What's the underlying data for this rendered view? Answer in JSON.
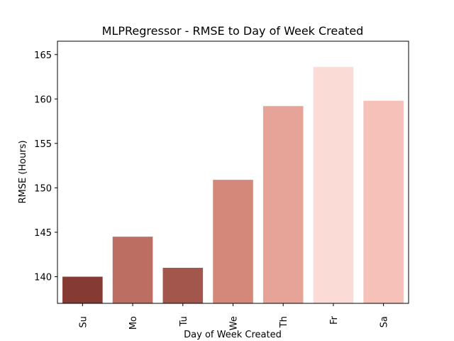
{
  "chart_data": {
    "type": "bar",
    "title": "MLPRegressor - RMSE to Day of Week Created",
    "xlabel": "Day of Week Created",
    "ylabel": "RMSE (Hours)",
    "categories": [
      "Su",
      "Mo",
      "Tu",
      "We",
      "Th",
      "Fr",
      "Sa"
    ],
    "values": [
      140.0,
      144.5,
      141.0,
      150.9,
      159.2,
      163.6,
      159.8
    ],
    "colors": [
      "#863a34",
      "#bd6e62",
      "#a3574c",
      "#d4887a",
      "#e6a398",
      "#fadbd6",
      "#f5c1b8"
    ],
    "ylim": [
      137.0,
      166.5
    ],
    "yticks": [
      140,
      145,
      150,
      155,
      160,
      165
    ],
    "grid": false,
    "legend": "none"
  }
}
